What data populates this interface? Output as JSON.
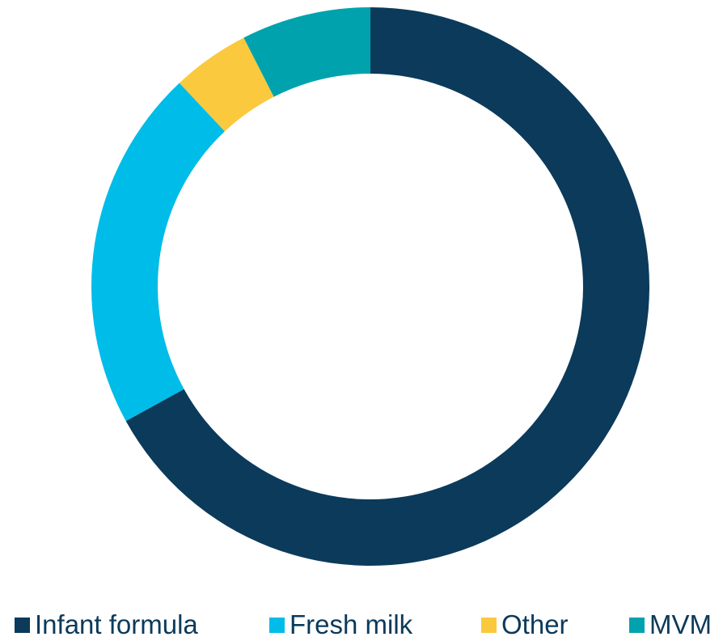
{
  "chart_data": {
    "type": "pie",
    "variant": "donut",
    "title": "",
    "categories": [
      "Infant formula",
      "Fresh milk",
      "Other",
      "MVM"
    ],
    "values": [
      67,
      21,
      4.5,
      7.5
    ],
    "unit": "%",
    "colors": [
      "#0b3a5b",
      "#00bce8",
      "#fbc93d",
      "#00a3ad"
    ],
    "start_angle_deg": 0,
    "direction": "clockwise",
    "legend_position": "bottom"
  },
  "legend": {
    "items": [
      {
        "label": "Infant formula",
        "color": "#0b3a5b"
      },
      {
        "label": "Fresh milk",
        "color": "#00bce8"
      },
      {
        "label": "Other",
        "color": "#fbc93d"
      },
      {
        "label": "MVM",
        "color": "#00a3ad"
      }
    ]
  }
}
